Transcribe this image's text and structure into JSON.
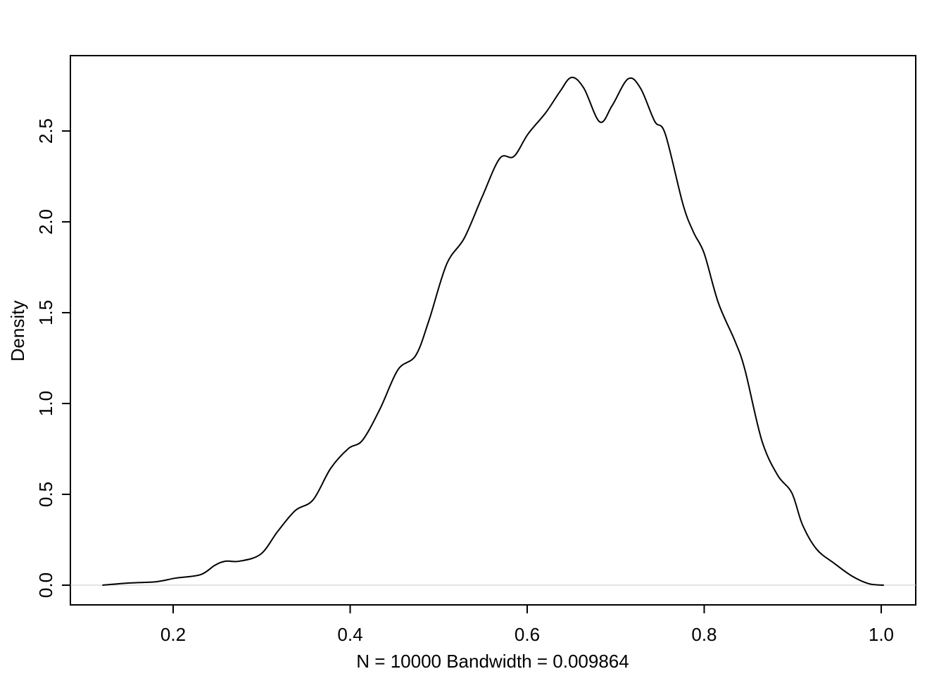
{
  "chart_data": {
    "type": "line",
    "x_label": "N = 10000   Bandwidth = 0.009864",
    "y_label": "Density",
    "x": [
      0.12,
      0.151,
      0.181,
      0.203,
      0.231,
      0.247,
      0.259,
      0.275,
      0.299,
      0.318,
      0.338,
      0.358,
      0.378,
      0.398,
      0.414,
      0.434,
      0.454,
      0.474,
      0.489,
      0.509,
      0.529,
      0.549,
      0.569,
      0.585,
      0.601,
      0.621,
      0.637,
      0.65,
      0.664,
      0.682,
      0.696,
      0.714,
      0.728,
      0.744,
      0.756,
      0.776,
      0.788,
      0.8,
      0.816,
      0.835,
      0.846,
      0.865,
      0.883,
      0.899,
      0.911,
      0.927,
      0.947,
      0.967,
      0.986,
      1.003
    ],
    "values": [
      0,
      0.012,
      0.019,
      0.039,
      0.058,
      0.109,
      0.132,
      0.132,
      0.171,
      0.295,
      0.411,
      0.469,
      0.643,
      0.752,
      0.798,
      0.973,
      1.186,
      1.264,
      1.457,
      1.767,
      1.911,
      2.136,
      2.349,
      2.36,
      2.484,
      2.601,
      2.717,
      2.795,
      2.736,
      2.55,
      2.64,
      2.787,
      2.736,
      2.554,
      2.484,
      2.097,
      1.942,
      1.826,
      1.554,
      1.341,
      1.186,
      0.798,
      0.605,
      0.508,
      0.333,
      0.198,
      0.12,
      0.05,
      0.008,
      0
    ],
    "color": "#000000",
    "xlim": [
      0.0839,
      1.039
    ],
    "ylim": [
      -0.1085,
      2.915
    ],
    "xticks": [
      0.2,
      0.4,
      0.6,
      0.8,
      {
        "value": 1,
        "label": "1.0"
      }
    ],
    "yticks": [
      {
        "value": 0,
        "label": "0.0"
      },
      0.5,
      {
        "value": 1,
        "label": "1.0"
      },
      1.5,
      {
        "value": 2,
        "label": "2.0"
      },
      2.5
    ],
    "zero_line": true,
    "grid": false
  }
}
